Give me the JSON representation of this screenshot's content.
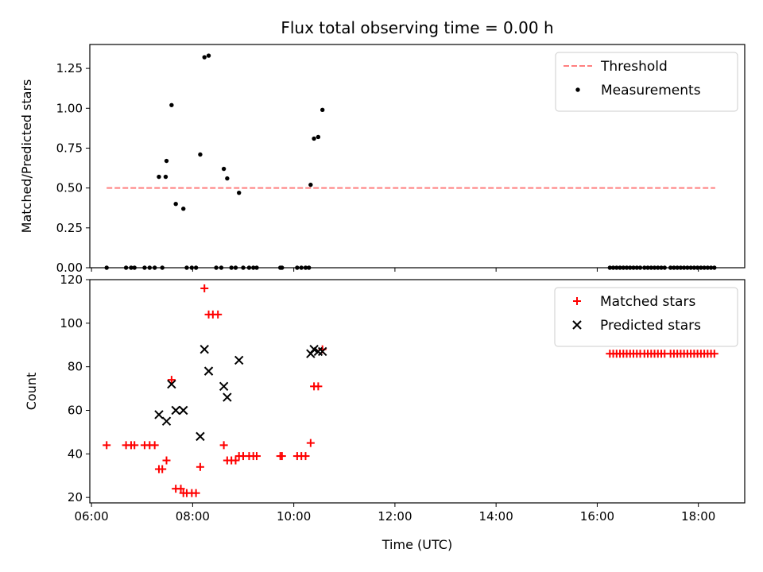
{
  "chart_data": [
    {
      "type": "scatter",
      "title": "Flux total observing time = 0.00 h",
      "xlabel": "",
      "ylabel": "Matched/Predicted stars",
      "x_axis": "time (UTC)",
      "xlim": [
        "05:58",
        "18:55"
      ],
      "ylim": [
        0,
        1.4
      ],
      "xticks": [
        "06:00",
        "08:00",
        "10:00",
        "12:00",
        "14:00",
        "16:00",
        "18:00"
      ],
      "xtick_labels_visible": false,
      "yticks": [
        "0.00",
        "0.25",
        "0.50",
        "0.75",
        "1.00",
        "1.25"
      ],
      "legend_position": "top-right",
      "threshold": {
        "name": "Threshold",
        "value": 0.5,
        "x_range": [
          "06:18",
          "18:20"
        ],
        "color": "#ff7f7f",
        "style": "dashed"
      },
      "series": [
        {
          "name": "Measurements",
          "color": "#000000",
          "marker": "dot",
          "points": [
            [
              "06:18",
              0
            ],
            [
              "06:41",
              0
            ],
            [
              "06:47",
              0
            ],
            [
              "06:51",
              0
            ],
            [
              "07:03",
              0
            ],
            [
              "07:09",
              0
            ],
            [
              "07:15",
              0
            ],
            [
              "07:24",
              0
            ],
            [
              "07:20",
              0.57
            ],
            [
              "07:28",
              0.57
            ],
            [
              "07:29",
              0.67
            ],
            [
              "07:35",
              1.02
            ],
            [
              "07:40",
              0.4
            ],
            [
              "07:49",
              0.37
            ],
            [
              "07:53",
              0
            ],
            [
              "07:59",
              0
            ],
            [
              "08:04",
              0
            ],
            [
              "08:09",
              0.71
            ],
            [
              "08:14",
              1.32
            ],
            [
              "08:19",
              1.33
            ],
            [
              "08:28",
              0
            ],
            [
              "08:34",
              0
            ],
            [
              "08:37",
              0.62
            ],
            [
              "08:41",
              0.56
            ],
            [
              "08:46",
              0
            ],
            [
              "08:51",
              0
            ],
            [
              "08:55",
              0.47
            ],
            [
              "09:00",
              0
            ],
            [
              "09:07",
              0
            ],
            [
              "09:12",
              0
            ],
            [
              "09:16",
              0
            ],
            [
              "09:44",
              0
            ],
            [
              "09:46",
              0
            ],
            [
              "10:04",
              0
            ],
            [
              "10:09",
              0
            ],
            [
              "10:14",
              0
            ],
            [
              "10:18",
              0
            ],
            [
              "10:20",
              0.52
            ],
            [
              "10:24",
              0.81
            ],
            [
              "10:29",
              0.82
            ],
            [
              "10:34",
              0.99
            ],
            [
              "16:15",
              0
            ],
            [
              "16:19",
              0
            ],
            [
              "16:23",
              0
            ],
            [
              "16:27",
              0
            ],
            [
              "16:31",
              0
            ],
            [
              "16:35",
              0
            ],
            [
              "16:39",
              0
            ],
            [
              "16:43",
              0
            ],
            [
              "16:47",
              0
            ],
            [
              "16:51",
              0
            ],
            [
              "16:56",
              0
            ],
            [
              "17:00",
              0
            ],
            [
              "17:04",
              0
            ],
            [
              "17:08",
              0
            ],
            [
              "17:12",
              0
            ],
            [
              "17:16",
              0
            ],
            [
              "17:20",
              0
            ],
            [
              "17:27",
              0
            ],
            [
              "17:31",
              0
            ],
            [
              "17:35",
              0
            ],
            [
              "17:39",
              0
            ],
            [
              "17:43",
              0
            ],
            [
              "17:47",
              0
            ],
            [
              "17:51",
              0
            ],
            [
              "17:55",
              0
            ],
            [
              "17:59",
              0
            ],
            [
              "18:03",
              0
            ],
            [
              "18:07",
              0
            ],
            [
              "18:11",
              0
            ],
            [
              "18:15",
              0
            ],
            [
              "18:19",
              0
            ]
          ]
        }
      ]
    },
    {
      "type": "scatter",
      "title": "",
      "xlabel": "Time (UTC)",
      "ylabel": "Count",
      "x_axis": "time (UTC)",
      "xlim": [
        "05:58",
        "18:55"
      ],
      "ylim": [
        17.5,
        120
      ],
      "xticks": [
        "06:00",
        "08:00",
        "10:00",
        "12:00",
        "14:00",
        "16:00",
        "18:00"
      ],
      "yticks": [
        "20",
        "40",
        "60",
        "80",
        "100",
        "120"
      ],
      "legend_position": "top-right",
      "series": [
        {
          "name": "Matched stars",
          "color": "#ff0000",
          "marker": "plus",
          "points": [
            [
              "06:18",
              44
            ],
            [
              "06:41",
              44
            ],
            [
              "06:47",
              44
            ],
            [
              "06:51",
              44
            ],
            [
              "07:03",
              44
            ],
            [
              "07:09",
              44
            ],
            [
              "07:15",
              44
            ],
            [
              "07:20",
              33
            ],
            [
              "07:24",
              33
            ],
            [
              "07:29",
              37
            ],
            [
              "07:35",
              74
            ],
            [
              "07:40",
              24
            ],
            [
              "07:46",
              24
            ],
            [
              "07:49",
              22
            ],
            [
              "07:53",
              22
            ],
            [
              "07:59",
              22
            ],
            [
              "08:04",
              22
            ],
            [
              "08:09",
              34
            ],
            [
              "08:14",
              116
            ],
            [
              "08:19",
              104
            ],
            [
              "08:24",
              104
            ],
            [
              "08:30",
              104
            ],
            [
              "08:37",
              44
            ],
            [
              "08:41",
              37
            ],
            [
              "08:46",
              37
            ],
            [
              "08:51",
              37
            ],
            [
              "08:55",
              39
            ],
            [
              "09:00",
              39
            ],
            [
              "09:07",
              39
            ],
            [
              "09:12",
              39
            ],
            [
              "09:16",
              39
            ],
            [
              "09:44",
              39
            ],
            [
              "09:46",
              39
            ],
            [
              "10:04",
              39
            ],
            [
              "10:09",
              39
            ],
            [
              "10:14",
              39
            ],
            [
              "10:20",
              45
            ],
            [
              "10:24",
              71
            ],
            [
              "10:29",
              71
            ],
            [
              "10:34",
              88
            ],
            [
              "16:15",
              86
            ],
            [
              "16:19",
              86
            ],
            [
              "16:23",
              86
            ],
            [
              "16:27",
              86
            ],
            [
              "16:31",
              86
            ],
            [
              "16:35",
              86
            ],
            [
              "16:39",
              86
            ],
            [
              "16:43",
              86
            ],
            [
              "16:47",
              86
            ],
            [
              "16:51",
              86
            ],
            [
              "16:56",
              86
            ],
            [
              "17:00",
              86
            ],
            [
              "17:04",
              86
            ],
            [
              "17:08",
              86
            ],
            [
              "17:12",
              86
            ],
            [
              "17:16",
              86
            ],
            [
              "17:20",
              86
            ],
            [
              "17:27",
              86
            ],
            [
              "17:31",
              86
            ],
            [
              "17:35",
              86
            ],
            [
              "17:39",
              86
            ],
            [
              "17:43",
              86
            ],
            [
              "17:47",
              86
            ],
            [
              "17:51",
              86
            ],
            [
              "17:55",
              86
            ],
            [
              "17:59",
              86
            ],
            [
              "18:03",
              86
            ],
            [
              "18:07",
              86
            ],
            [
              "18:11",
              86
            ],
            [
              "18:15",
              86
            ],
            [
              "18:19",
              86
            ]
          ]
        },
        {
          "name": "Predicted stars",
          "color": "#000000",
          "marker": "x",
          "points": [
            [
              "07:20",
              58
            ],
            [
              "07:29",
              55
            ],
            [
              "07:35",
              72
            ],
            [
              "07:40",
              60
            ],
            [
              "07:49",
              60
            ],
            [
              "08:09",
              48
            ],
            [
              "08:14",
              88
            ],
            [
              "08:19",
              78
            ],
            [
              "08:37",
              71
            ],
            [
              "08:41",
              66
            ],
            [
              "08:55",
              83
            ],
            [
              "10:20",
              86
            ],
            [
              "10:24",
              88
            ],
            [
              "10:29",
              87
            ],
            [
              "10:34",
              87
            ]
          ]
        }
      ]
    }
  ]
}
